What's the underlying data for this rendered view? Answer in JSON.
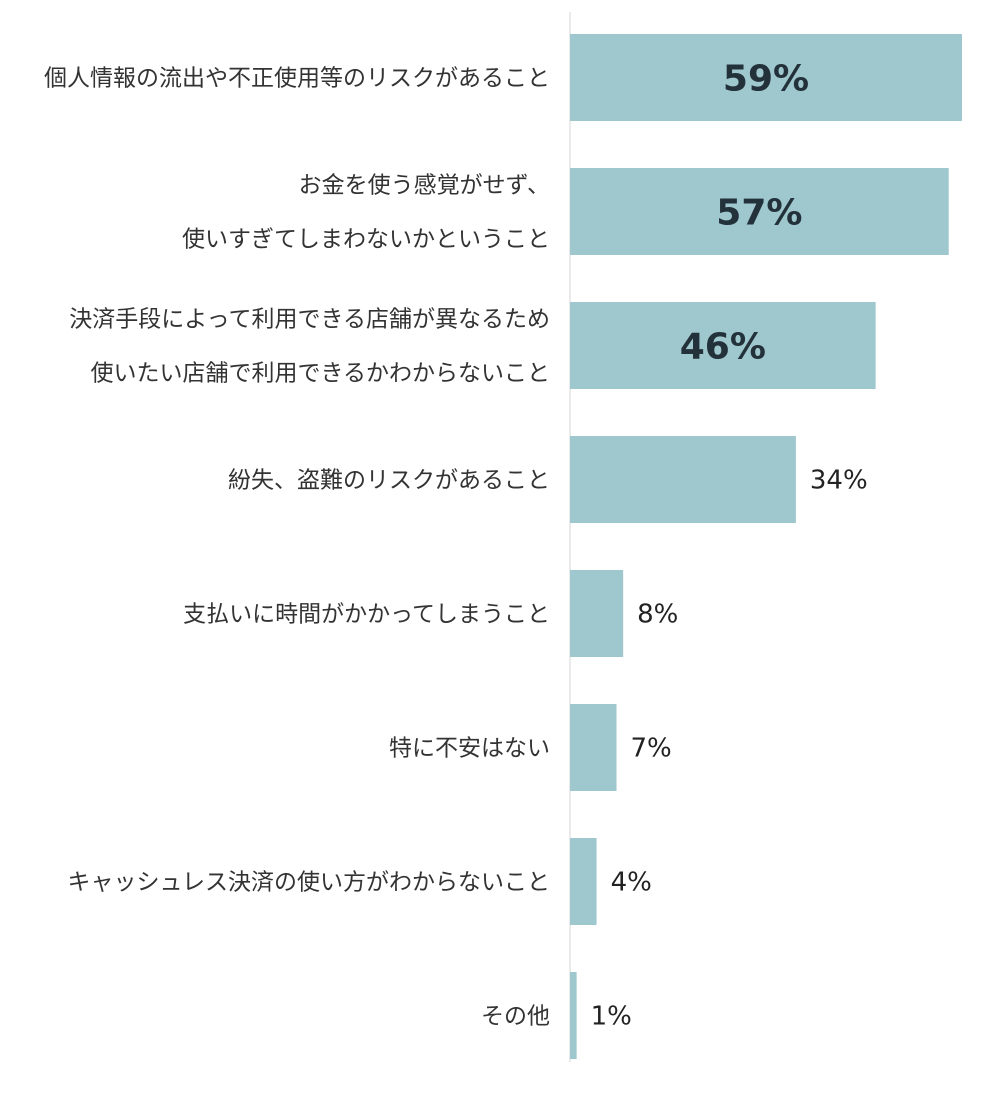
{
  "chart_data": {
    "type": "bar",
    "orientation": "horizontal",
    "title": "",
    "xlabel": "",
    "ylabel": "",
    "xlim": [
      0,
      60
    ],
    "grid": false,
    "legend": "none",
    "bar_color": "#9fc7ce",
    "axis_color": "#d6d6d6",
    "categories": [
      [
        "個人情報の流出や不正使用等のリスクがあること"
      ],
      [
        "お金を使う感覚がせず、",
        "使いすぎてしまわないかということ"
      ],
      [
        "決済手段によって利用できる店舗が異なるため",
        "使いたい店舗で利用できるかわからないこと"
      ],
      [
        "紛失、盗難のリスクがあること"
      ],
      [
        "支払いに時間がかかってしまうこと"
      ],
      [
        "特に不安はない"
      ],
      [
        "キャッシュレス決済の使い方がわからないこと"
      ],
      [
        "その他"
      ]
    ],
    "values": [
      59,
      57,
      46,
      34,
      8,
      7,
      4,
      1
    ],
    "value_labels": [
      "59%",
      "57%",
      "46%",
      "34%",
      "8%",
      "7%",
      "4%",
      "1%"
    ]
  }
}
